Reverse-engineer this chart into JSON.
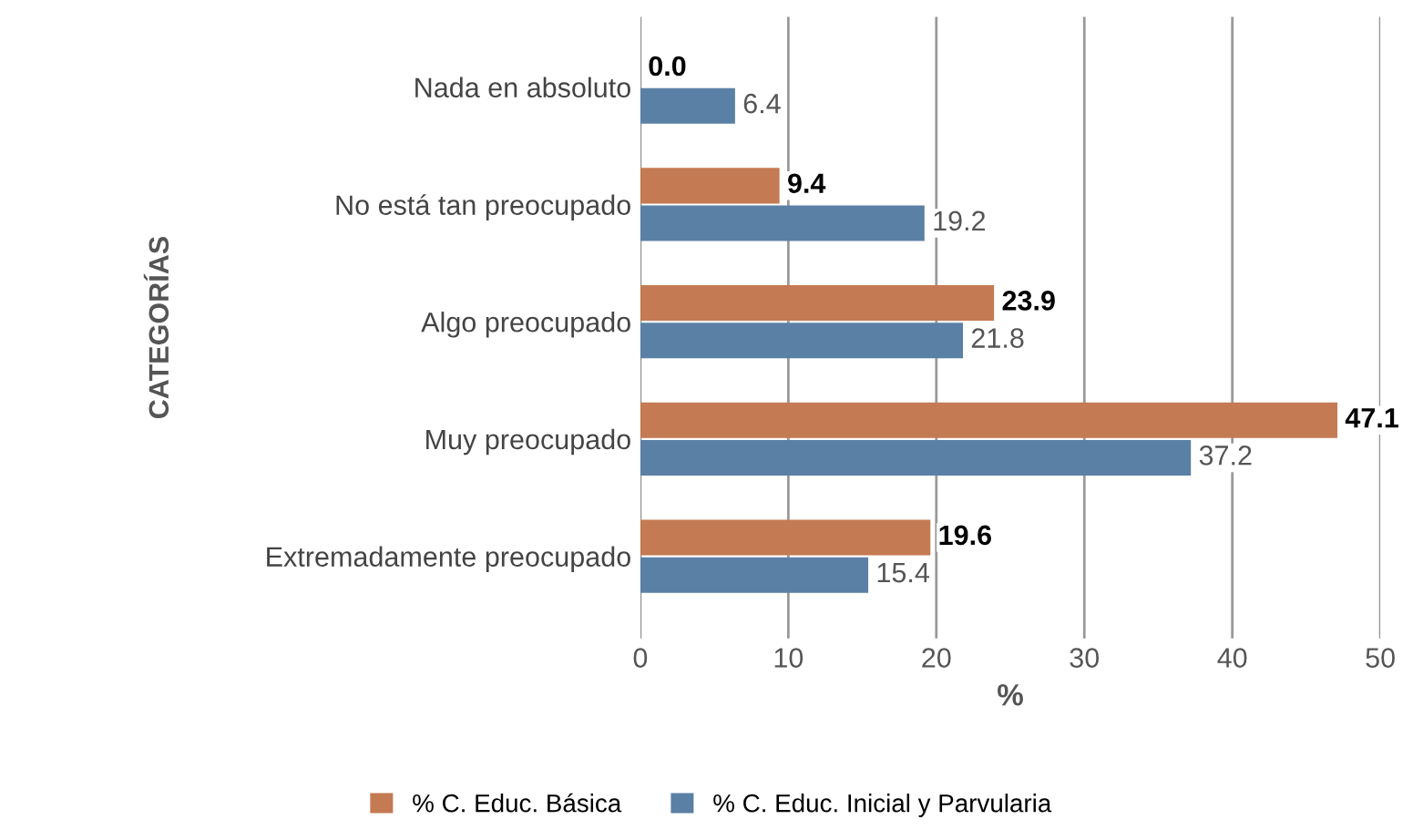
{
  "chart_data": {
    "type": "bar",
    "orientation": "horizontal",
    "xlabel": "%",
    "ylabel": "CATEGORÍAS",
    "categories": [
      "Nada en absoluto",
      "No está tan preocupado",
      "Algo preocupado",
      "Muy preocupado",
      "Extremadamente preocupado"
    ],
    "series": [
      {
        "name": "% C. Educ. Básica",
        "color": "#c47a52",
        "values": [
          0.0,
          9.4,
          23.9,
          47.1,
          19.6
        ],
        "value_labels": [
          "0.0",
          "9.4",
          "23.9",
          "47.1",
          "19.6"
        ]
      },
      {
        "name": "% C. Educ. Inicial y Parvularia",
        "color": "#5b80a5",
        "values": [
          6.4,
          19.2,
          21.8,
          37.2,
          15.4
        ],
        "value_labels": [
          "6.4",
          "19.2",
          "21.8",
          "37.2",
          "15.4"
        ]
      }
    ],
    "xlim": [
      0,
      50
    ],
    "xticks": [
      0,
      10,
      20,
      30,
      40,
      50
    ],
    "grid": "x",
    "legend": "bottom"
  }
}
